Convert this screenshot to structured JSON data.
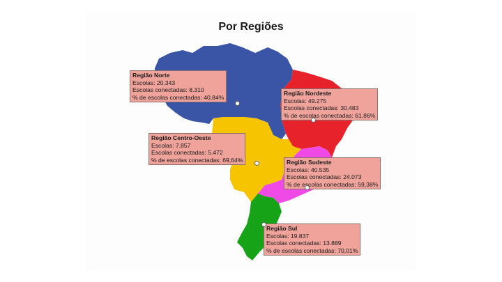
{
  "title": "Por Regiões",
  "colors": {
    "norte": "#3b55a6",
    "nordeste": "#e8222a",
    "centro_oeste": "#f6c400",
    "sudeste": "#f04ae6",
    "sul": "#17a317",
    "callout_bg": "#f0a39b"
  },
  "regions": [
    {
      "name": "Região Norte",
      "schools": "Escolas: 20.343",
      "connected": "Escolas conectadas: 8.310",
      "percent": "% de escolas conectadas: 40,84%"
    },
    {
      "name": "Região Nordeste",
      "schools": "Escolas: 49.275",
      "connected": "Escolas conectadas: 30.483",
      "percent": "% de escolas conectadas: 61,86%"
    },
    {
      "name": "Região Centro-Oeste",
      "schools": "Escolas: 7.857",
      "connected": "Escolas conectadas: 5.472",
      "percent": "% de escolas conectadas: 69,64%"
    },
    {
      "name": "Região Sudeste",
      "schools": "Escolas: 40.535",
      "connected": "Escolas conectadas: 24.073",
      "percent": "% de escolas conectadas: 59,38%"
    },
    {
      "name": "Região Sul",
      "schools": "Escolas: 19.837",
      "connected": "Escolas conectadas: 13.889",
      "percent": "% de escolas conectadas: 70,01%"
    }
  ]
}
